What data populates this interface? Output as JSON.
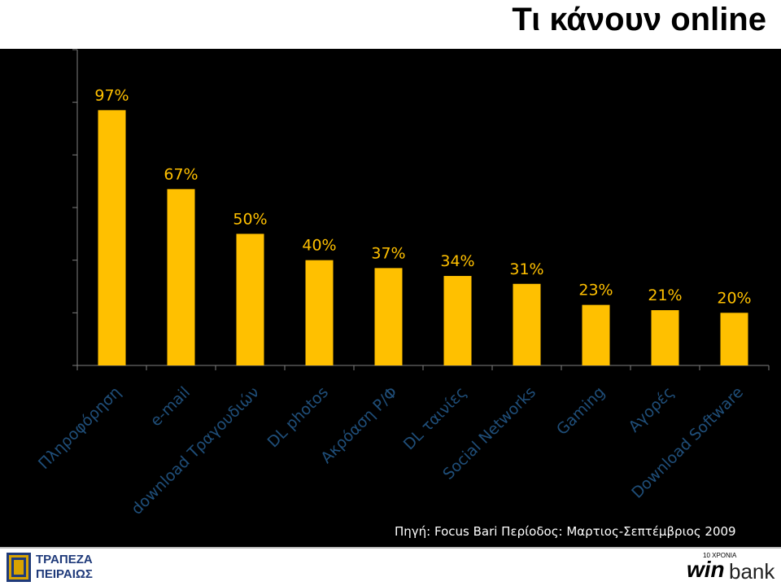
{
  "title": "Τι κάνουν online",
  "source_note": "Πηγή: Focus Bari  Περίοδος: Μαρτιος-Σεπτέμβριος 2009",
  "logos": {
    "left_line1": "ΤΡΑΠΕΖΑ",
    "left_line2": "ΠΕΙΡΑΙΩΣ",
    "right_anniv": "10 ΧΡΟΝΙΑ",
    "right_win": "win",
    "right_bank": "bank"
  },
  "colors": {
    "bar": "#FFC000",
    "label": "#FFC000",
    "category": "#1F4E79",
    "axis": "#7F7F7F",
    "background": "#000000"
  },
  "chart_data": {
    "type": "bar",
    "title": "Τι κάνουν online",
    "categories": [
      "Πληροφόρηση",
      "e-mail",
      "download Τραγουδιών",
      "DL photos",
      "Ακρόαση Ρ/Φ",
      "DL ταινίες",
      "Social Networks",
      "Gaming",
      "Αγορές",
      "Download Software"
    ],
    "values": [
      97,
      67,
      50,
      40,
      37,
      34,
      31,
      23,
      21,
      20
    ],
    "data_labels": [
      "97%",
      "67%",
      "50%",
      "40%",
      "37%",
      "34%",
      "31%",
      "23%",
      "21%",
      "20%"
    ],
    "ylim": [
      0,
      120
    ],
    "grid": false,
    "legend": "none"
  }
}
